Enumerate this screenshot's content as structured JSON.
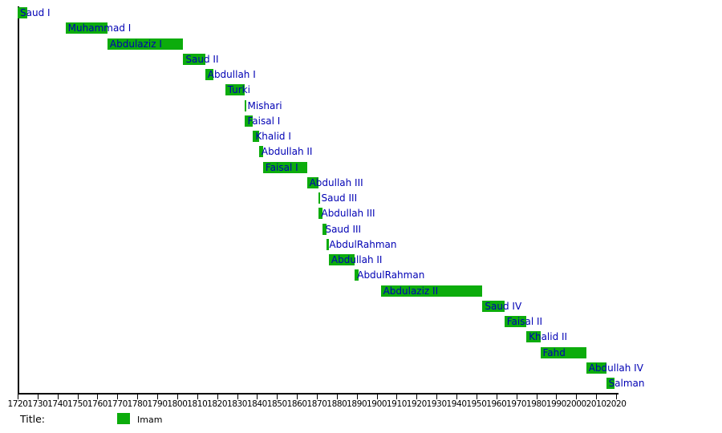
{
  "chart_data": {
    "type": "bar",
    "variant": "horizontal-gantt-timeline",
    "title": "",
    "xlabel": "",
    "ylabel": "",
    "grid": false,
    "x_axis": {
      "min": 1720,
      "max": 2020,
      "tick_interval": 10,
      "tick_labels": [
        "1720",
        "1730",
        "1740",
        "1750",
        "1760",
        "1770",
        "1780",
        "1790",
        "1800",
        "1810",
        "1820",
        "1830",
        "1840",
        "1850",
        "1860",
        "1870",
        "1880",
        "1890",
        "1900",
        "1910",
        "1920",
        "1930",
        "1940",
        "1950",
        "1960",
        "1970",
        "1980",
        "1990",
        "2000",
        "2010",
        "2020"
      ]
    },
    "rows": [
      {
        "label": "Saud I",
        "start": 1720,
        "end": 1725
      },
      {
        "label": "Muhammad I",
        "start": 1744,
        "end": 1765
      },
      {
        "label": "Abdulaziz I",
        "start": 1765,
        "end": 1803
      },
      {
        "label": "Saud II",
        "start": 1803,
        "end": 1814
      },
      {
        "label": "Abdullah I",
        "start": 1814,
        "end": 1818
      },
      {
        "label": "Turki",
        "start": 1824,
        "end": 1834
      },
      {
        "label": "Mishari",
        "start": 1834,
        "end": 1834
      },
      {
        "label": "Faisal I",
        "start": 1834,
        "end": 1838
      },
      {
        "label": "Khalid I",
        "start": 1838,
        "end": 1841
      },
      {
        "label": "Abdullah II",
        "start": 1841,
        "end": 1843
      },
      {
        "label": "Faisal I",
        "start": 1843,
        "end": 1865
      },
      {
        "label": "Abdullah III",
        "start": 1865,
        "end": 1871
      },
      {
        "label": "Saud III",
        "start": 1871,
        "end": 1871
      },
      {
        "label": "Abdullah III",
        "start": 1871,
        "end": 1873
      },
      {
        "label": "Saud III",
        "start": 1873,
        "end": 1875
      },
      {
        "label": "AbdulRahman",
        "start": 1875,
        "end": 1876
      },
      {
        "label": "Abdullah II",
        "start": 1876,
        "end": 1889
      },
      {
        "label": "AbdulRahman",
        "start": 1889,
        "end": 1891
      },
      {
        "label": "Abdulaziz II",
        "start": 1902,
        "end": 1953
      },
      {
        "label": "Saud IV",
        "start": 1953,
        "end": 1964
      },
      {
        "label": "Faisal II",
        "start": 1964,
        "end": 1975
      },
      {
        "label": "Khalid II",
        "start": 1975,
        "end": 1982
      },
      {
        "label": "Fahd",
        "start": 1982,
        "end": 2005
      },
      {
        "label": "Abdullah IV",
        "start": 2005,
        "end": 2015
      },
      {
        "label": "Salman",
        "start": 2015,
        "end": 2019
      }
    ],
    "colors": {
      "bar": "#0CAC0C",
      "bar_label": "#0000B4",
      "axis": "#000000",
      "tick_label": "#000000"
    },
    "legend": {
      "position": "bottom-left",
      "title_label": "Title:",
      "items": [
        {
          "label": "Imam",
          "color": "#0CAC0C"
        }
      ]
    }
  }
}
